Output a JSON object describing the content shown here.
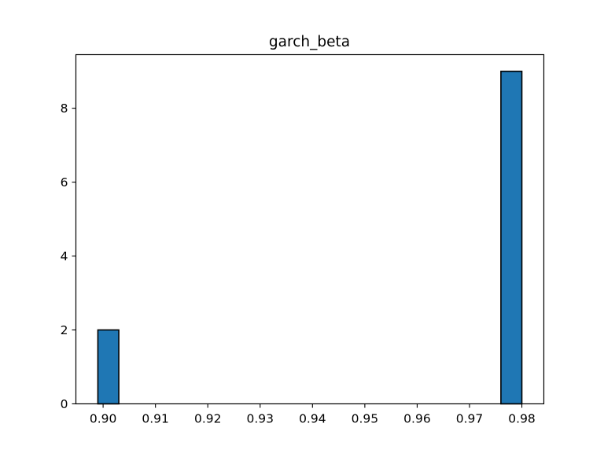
{
  "chart_data": {
    "type": "bar",
    "title": "garch_beta",
    "xlabel": "",
    "ylabel": "",
    "xlim": [
      0.8948,
      0.9842
    ],
    "ylim": [
      0,
      9.45
    ],
    "x_ticks": [
      0.9,
      0.91,
      0.92,
      0.93,
      0.94,
      0.95,
      0.96,
      0.97,
      0.98
    ],
    "x_tick_labels": [
      "0.90",
      "0.91",
      "0.92",
      "0.93",
      "0.94",
      "0.95",
      "0.96",
      "0.97",
      "0.98"
    ],
    "y_ticks": [
      0,
      2,
      4,
      6,
      8
    ],
    "y_tick_labels": [
      "0",
      "2",
      "4",
      "6",
      "8"
    ],
    "bin_width": 0.004,
    "bins": [
      {
        "x0": 0.899,
        "x1": 0.903,
        "count": 2
      },
      {
        "x0": 0.903,
        "x1": 0.907,
        "count": 0
      },
      {
        "x0": 0.907,
        "x1": 0.911,
        "count": 0
      },
      {
        "x0": 0.911,
        "x1": 0.915,
        "count": 0
      },
      {
        "x0": 0.915,
        "x1": 0.919,
        "count": 0
      },
      {
        "x0": 0.919,
        "x1": 0.923,
        "count": 0
      },
      {
        "x0": 0.923,
        "x1": 0.927,
        "count": 0
      },
      {
        "x0": 0.927,
        "x1": 0.931,
        "count": 0
      },
      {
        "x0": 0.931,
        "x1": 0.935,
        "count": 0
      },
      {
        "x0": 0.935,
        "x1": 0.939,
        "count": 0
      },
      {
        "x0": 0.939,
        "x1": 0.943,
        "count": 0
      },
      {
        "x0": 0.943,
        "x1": 0.947,
        "count": 0
      },
      {
        "x0": 0.947,
        "x1": 0.951,
        "count": 0
      },
      {
        "x0": 0.951,
        "x1": 0.955,
        "count": 0
      },
      {
        "x0": 0.955,
        "x1": 0.959,
        "count": 0
      },
      {
        "x0": 0.959,
        "x1": 0.963,
        "count": 0
      },
      {
        "x0": 0.963,
        "x1": 0.967,
        "count": 0
      },
      {
        "x0": 0.967,
        "x1": 0.971,
        "count": 0
      },
      {
        "x0": 0.971,
        "x1": 0.976,
        "count": 0
      },
      {
        "x0": 0.976,
        "x1": 0.98,
        "count": 9
      }
    ],
    "bar_color": "#1f77b4",
    "edge_color": "#000000",
    "grid": false,
    "legend": "none"
  }
}
